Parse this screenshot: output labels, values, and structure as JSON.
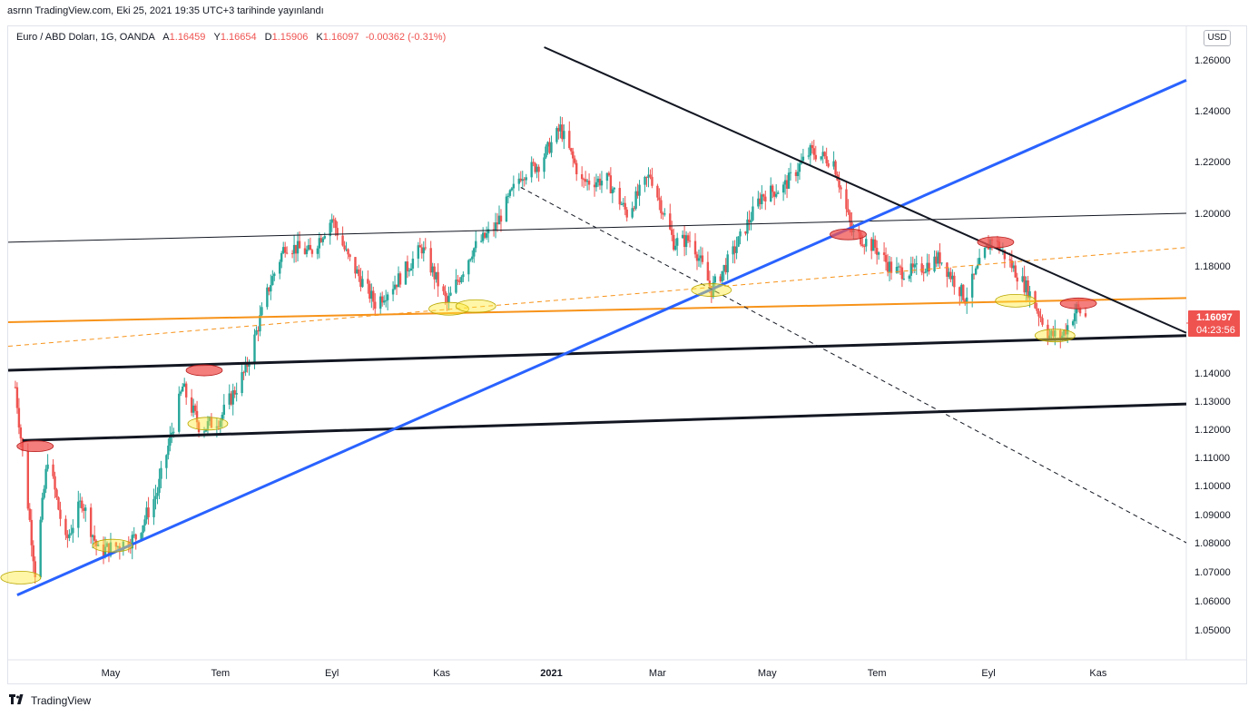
{
  "header": {
    "published": "asrnn TradingView.com, Eki 25, 2021 19:35 UTC+3 tarihinde yayınlandı"
  },
  "legend": {
    "symbol": "Euro / ABD Doları, 1G, OANDA",
    "open_label": "A",
    "open": "1.16459",
    "high_label": "Y",
    "high": "1.16654",
    "low_label": "D",
    "low": "1.15906",
    "close_label": "K",
    "close": "1.16097",
    "change": "-0.00362 (-0.31%)"
  },
  "currency": "USD",
  "price_tag": {
    "price": "1.16097",
    "countdown": "04:23:56"
  },
  "footer": {
    "logo_icon": "tradingview-logo-icon",
    "brand": "TradingView"
  },
  "colors": {
    "up": "#26a69a",
    "down": "#ef5350",
    "trend_blue": "#2962ff",
    "orange": "#f7931a",
    "tag": "#ef5350"
  },
  "chart_data": {
    "type": "candlestick",
    "y_ticks": [
      "1.26000",
      "1.24000",
      "1.22000",
      "1.20000",
      "1.18000",
      "1.14000",
      "1.13000",
      "1.12000",
      "1.11000",
      "1.10000",
      "1.09000",
      "1.08000",
      "1.07000",
      "1.06000",
      "1.05000"
    ],
    "x_ticks": [
      "May",
      "Tem",
      "Eyl",
      "Kas",
      "2021",
      "Mar",
      "May",
      "Tem",
      "Eyl",
      "Kas"
    ],
    "x_range": [
      "2020-03-05",
      "2021-12-20"
    ],
    "price_path": [
      [
        "2020-03-09",
        1.135
      ],
      [
        "2020-03-20",
        1.07
      ],
      [
        "2020-03-27",
        1.11
      ],
      [
        "2020-04-06",
        1.08
      ],
      [
        "2020-04-15",
        1.095
      ],
      [
        "2020-04-24",
        1.077
      ],
      [
        "2020-05-06",
        1.079
      ],
      [
        "2020-05-15",
        1.082
      ],
      [
        "2020-05-27",
        1.098
      ],
      [
        "2020-06-10",
        1.135
      ],
      [
        "2020-06-20",
        1.12
      ],
      [
        "2020-07-01",
        1.124
      ],
      [
        "2020-07-15",
        1.141
      ],
      [
        "2020-07-28",
        1.172
      ],
      [
        "2020-08-06",
        1.188
      ],
      [
        "2020-08-20",
        1.185
      ],
      [
        "2020-09-01",
        1.198
      ],
      [
        "2020-09-10",
        1.183
      ],
      [
        "2020-09-25",
        1.166
      ],
      [
        "2020-10-08",
        1.175
      ],
      [
        "2020-10-21",
        1.187
      ],
      [
        "2020-11-04",
        1.166
      ],
      [
        "2020-11-18",
        1.186
      ],
      [
        "2020-12-01",
        1.195
      ],
      [
        "2020-12-15",
        1.215
      ],
      [
        "2020-12-25",
        1.219
      ],
      [
        "2021-01-06",
        1.233
      ],
      [
        "2021-01-18",
        1.212
      ],
      [
        "2021-02-01",
        1.213
      ],
      [
        "2021-02-12",
        1.2
      ],
      [
        "2021-02-25",
        1.215
      ],
      [
        "2021-03-10",
        1.189
      ],
      [
        "2021-03-20",
        1.19
      ],
      [
        "2021-03-31",
        1.171
      ],
      [
        "2021-04-12",
        1.185
      ],
      [
        "2021-04-28",
        1.207
      ],
      [
        "2021-05-10",
        1.21
      ],
      [
        "2021-05-25",
        1.224
      ],
      [
        "2021-06-07",
        1.22
      ],
      [
        "2021-06-17",
        1.193
      ],
      [
        "2021-06-30",
        1.187
      ],
      [
        "2021-07-10",
        1.178
      ],
      [
        "2021-07-22",
        1.178
      ],
      [
        "2021-08-05",
        1.183
      ],
      [
        "2021-08-19",
        1.168
      ],
      [
        "2021-09-03",
        1.191
      ],
      [
        "2021-09-13",
        1.181
      ],
      [
        "2021-09-23",
        1.171
      ],
      [
        "2021-10-05",
        1.154
      ],
      [
        "2021-10-12",
        1.154
      ],
      [
        "2021-10-20",
        1.164
      ],
      [
        "2021-10-25",
        1.161
      ]
    ],
    "drawings": [
      {
        "name": "black-trendline-top-left",
        "from": [
          "2020-03-05",
          1.189
        ],
        "to": [
          "2021-12-20",
          1.2
        ],
        "color": "#131722",
        "width": 1
      },
      {
        "name": "orange-channel-line",
        "from": [
          "2020-03-05",
          1.159
        ],
        "to": [
          "2021-12-20",
          1.168
        ],
        "color": "#f7931a",
        "width": 2
      },
      {
        "name": "orange-dashed-line",
        "from": [
          "2020-03-05",
          1.15
        ],
        "to": [
          "2021-12-20",
          1.187
        ],
        "color": "#f7931a",
        "width": 1,
        "dash": true
      },
      {
        "name": "black-support-1",
        "from": [
          "2020-03-05",
          1.141
        ],
        "to": [
          "2021-12-20",
          1.154
        ],
        "color": "#131722",
        "width": 3
      },
      {
        "name": "black-support-2",
        "from": [
          "2020-03-13",
          1.116
        ],
        "to": [
          "2021-12-20",
          1.129
        ],
        "color": "#131722",
        "width": 3
      },
      {
        "name": "blue-uptrend",
        "from": [
          "2020-03-10",
          1.062
        ],
        "to": [
          "2021-12-20",
          1.252
        ],
        "color": "#2962ff",
        "width": 3
      },
      {
        "name": "black-downtrend",
        "from": [
          "2020-12-28",
          1.265
        ],
        "to": [
          "2021-12-20",
          1.155
        ],
        "color": "#131722",
        "width": 2
      },
      {
        "name": "black-dashed-down",
        "from": [
          "2020-12-15",
          1.21
        ],
        "to": [
          "2021-12-20",
          1.08
        ],
        "color": "#131722",
        "width": 1,
        "dash": true
      }
    ],
    "highlights": [
      {
        "kind": "support",
        "at": [
          "2020-03-12",
          1.068
        ]
      },
      {
        "kind": "support",
        "at": [
          "2020-05-02",
          1.079
        ]
      },
      {
        "kind": "support",
        "at": [
          "2020-06-24",
          1.122
        ]
      },
      {
        "kind": "resistance",
        "at": [
          "2020-03-20",
          1.114
        ]
      },
      {
        "kind": "resistance",
        "at": [
          "2020-06-22",
          1.141
        ]
      },
      {
        "kind": "support",
        "at": [
          "2020-11-05",
          1.164
        ]
      },
      {
        "kind": "support",
        "at": [
          "2020-11-20",
          1.165
        ]
      },
      {
        "kind": "support",
        "at": [
          "2021-03-31",
          1.171
        ]
      },
      {
        "kind": "resistance",
        "at": [
          "2021-06-15",
          1.192
        ]
      },
      {
        "kind": "resistance",
        "at": [
          "2021-09-05",
          1.189
        ]
      },
      {
        "kind": "support",
        "at": [
          "2021-09-16",
          1.167
        ]
      },
      {
        "kind": "support",
        "at": [
          "2021-10-08",
          1.154
        ]
      },
      {
        "kind": "resistance",
        "at": [
          "2021-10-21",
          1.166
        ]
      }
    ]
  }
}
